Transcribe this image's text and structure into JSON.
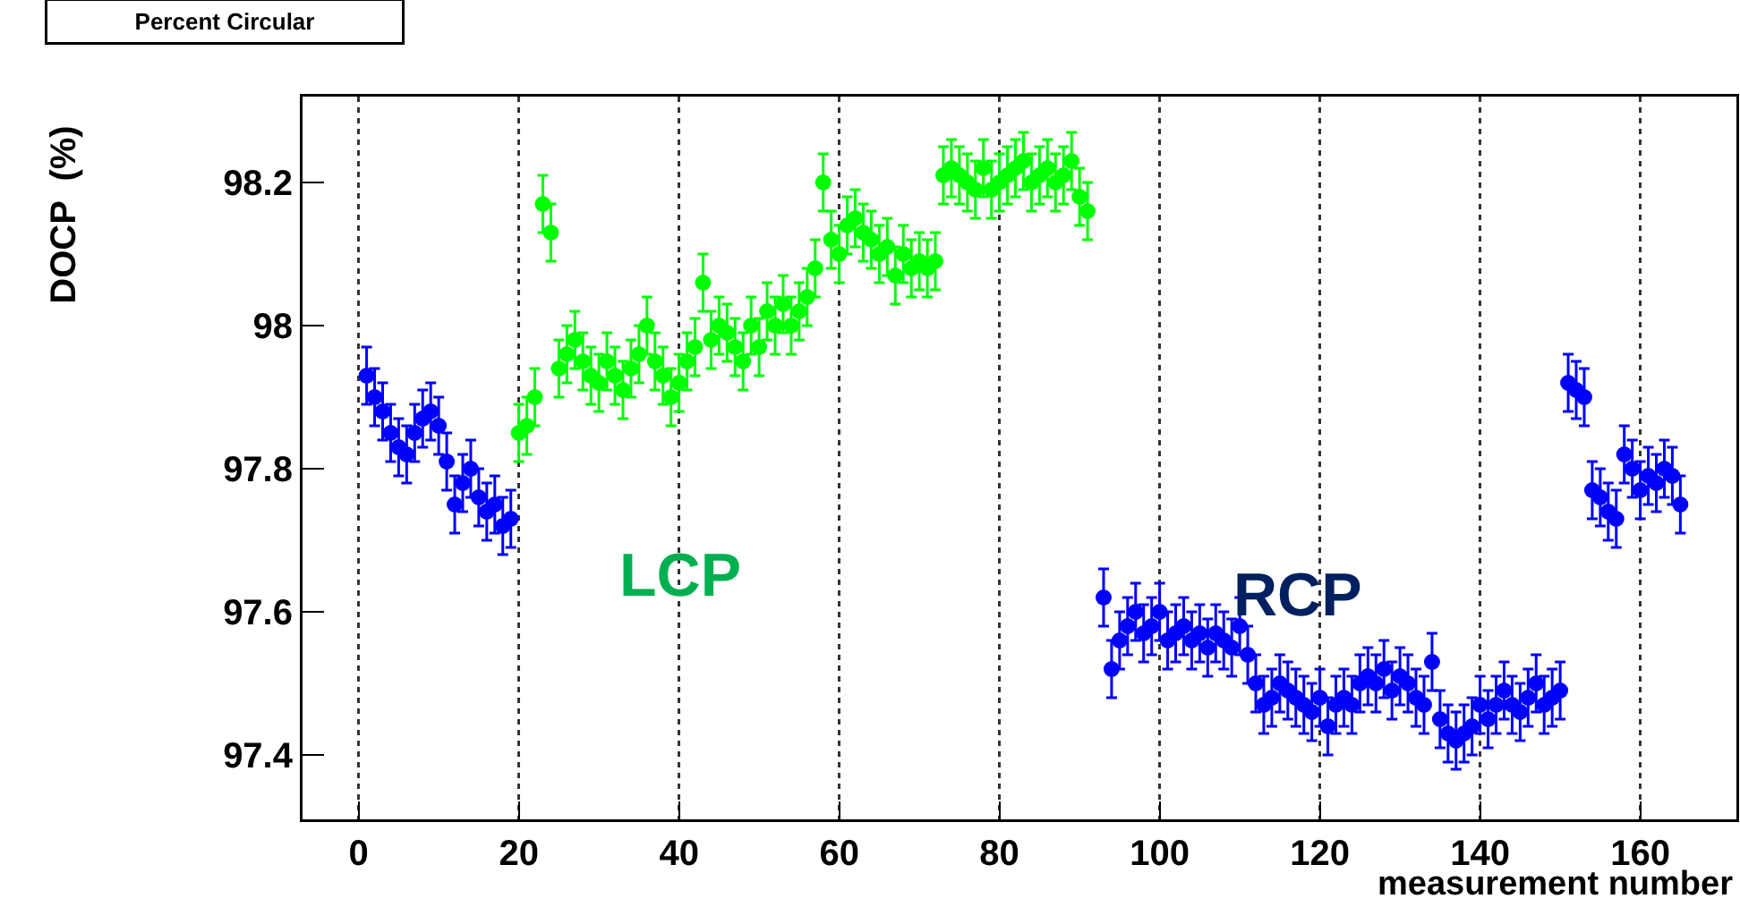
{
  "chart_data": {
    "type": "scatter",
    "title": "Percent Circular",
    "xlabel": "measurement number",
    "ylabel": "DOCP  (%)",
    "xlim": [
      -7,
      172
    ],
    "xticks": [
      0,
      20,
      40,
      60,
      80,
      100,
      120,
      140,
      160
    ],
    "ylim": [
      97.31,
      98.32
    ],
    "yticks": [
      97.4,
      97.6,
      97.8,
      98,
      98.2
    ],
    "grid": "x",
    "marker": "circle",
    "annotations": [
      "LCP",
      "RCP"
    ],
    "series": [
      {
        "color": "#00ff00",
        "x": [
          20,
          21,
          22,
          23,
          24,
          25,
          26,
          27,
          28,
          29,
          30,
          31,
          32,
          33,
          34,
          35,
          36,
          37,
          38,
          39,
          40,
          41,
          42,
          43,
          44,
          45,
          46,
          47,
          48,
          49,
          50,
          51,
          52,
          53,
          54,
          55,
          56,
          57,
          58,
          59,
          60,
          61,
          62,
          63,
          64,
          65,
          66,
          67,
          68,
          69,
          70,
          71,
          72,
          73,
          74,
          75,
          76,
          77,
          78,
          79,
          80,
          81,
          82,
          83,
          84,
          85,
          86,
          87,
          88,
          89,
          90,
          91
        ],
        "values": [
          97.85,
          97.86,
          97.9,
          98.17,
          98.13,
          97.94,
          97.96,
          97.98,
          97.95,
          97.93,
          97.92,
          97.95,
          97.93,
          97.91,
          97.94,
          97.96,
          98.0,
          97.95,
          97.93,
          97.9,
          97.92,
          97.95,
          97.97,
          98.06,
          97.98,
          98.0,
          97.99,
          97.97,
          97.95,
          98.0,
          97.97,
          98.02,
          98.0,
          98.03,
          98.0,
          98.02,
          98.04,
          98.08,
          98.2,
          98.12,
          98.1,
          98.14,
          98.15,
          98.13,
          98.12,
          98.1,
          98.11,
          98.07,
          98.1,
          98.08,
          98.09,
          98.08,
          98.09,
          98.21,
          98.22,
          98.21,
          98.2,
          98.19,
          98.22,
          98.19,
          98.2,
          98.21,
          98.22,
          98.23,
          98.2,
          98.21,
          98.22,
          98.2,
          98.21,
          98.23,
          98.18,
          98.16
        ],
        "errors": [
          0.04,
          0.04,
          0.04,
          0.04,
          0.04,
          0.04,
          0.04,
          0.04,
          0.04,
          0.04,
          0.04,
          0.04,
          0.04,
          0.04,
          0.04,
          0.04,
          0.04,
          0.04,
          0.04,
          0.04,
          0.04,
          0.04,
          0.04,
          0.04,
          0.04,
          0.04,
          0.04,
          0.04,
          0.04,
          0.04,
          0.04,
          0.04,
          0.04,
          0.04,
          0.04,
          0.04,
          0.04,
          0.04,
          0.04,
          0.04,
          0.04,
          0.04,
          0.04,
          0.04,
          0.04,
          0.04,
          0.04,
          0.04,
          0.04,
          0.04,
          0.04,
          0.04,
          0.04,
          0.04,
          0.04,
          0.04,
          0.04,
          0.04,
          0.04,
          0.04,
          0.04,
          0.04,
          0.04,
          0.04,
          0.04,
          0.04,
          0.04,
          0.04,
          0.04,
          0.04,
          0.04,
          0.04
        ]
      },
      {
        "color": "#0000ff",
        "x": [
          1,
          2,
          3,
          4,
          5,
          6,
          7,
          8,
          9,
          10,
          11,
          12,
          13,
          14,
          15,
          16,
          17,
          18,
          19,
          93,
          94,
          95,
          96,
          97,
          98,
          99,
          100,
          101,
          102,
          103,
          104,
          105,
          106,
          107,
          108,
          109,
          110,
          111,
          112,
          113,
          114,
          115,
          116,
          117,
          118,
          119,
          120,
          121,
          122,
          123,
          124,
          125,
          126,
          127,
          128,
          129,
          130,
          131,
          132,
          133,
          134,
          135,
          136,
          137,
          138,
          139,
          140,
          141,
          142,
          143,
          144,
          145,
          146,
          147,
          148,
          149,
          150,
          151,
          152,
          153,
          154,
          155,
          156,
          157,
          158,
          159,
          160,
          161,
          162,
          163,
          164,
          165
        ],
        "values": [
          97.93,
          97.9,
          97.88,
          97.85,
          97.83,
          97.82,
          97.85,
          97.87,
          97.88,
          97.86,
          97.81,
          97.75,
          97.78,
          97.8,
          97.76,
          97.74,
          97.75,
          97.72,
          97.73,
          97.62,
          97.52,
          97.56,
          97.58,
          97.6,
          97.57,
          97.58,
          97.6,
          97.56,
          97.57,
          97.58,
          97.56,
          97.57,
          97.55,
          97.57,
          97.56,
          97.55,
          97.58,
          97.54,
          97.5,
          97.47,
          97.48,
          97.5,
          97.49,
          97.48,
          97.47,
          97.46,
          97.48,
          97.44,
          97.47,
          97.48,
          97.47,
          97.5,
          97.51,
          97.5,
          97.52,
          97.49,
          97.51,
          97.5,
          97.48,
          97.47,
          97.53,
          97.45,
          97.43,
          97.42,
          97.43,
          97.44,
          97.47,
          97.45,
          97.47,
          97.49,
          97.47,
          97.46,
          97.48,
          97.5,
          97.47,
          97.48,
          97.49,
          97.92,
          97.91,
          97.9,
          97.77,
          97.76,
          97.74,
          97.73,
          97.82,
          97.8,
          97.77,
          97.79,
          97.78,
          97.8,
          97.79,
          97.75
        ],
        "errors": [
          0.04,
          0.04,
          0.04,
          0.04,
          0.04,
          0.04,
          0.04,
          0.04,
          0.04,
          0.04,
          0.04,
          0.04,
          0.04,
          0.04,
          0.04,
          0.04,
          0.04,
          0.04,
          0.04,
          0.04,
          0.04,
          0.04,
          0.04,
          0.04,
          0.04,
          0.04,
          0.04,
          0.04,
          0.04,
          0.04,
          0.04,
          0.04,
          0.04,
          0.04,
          0.04,
          0.04,
          0.04,
          0.04,
          0.04,
          0.04,
          0.04,
          0.04,
          0.04,
          0.04,
          0.04,
          0.04,
          0.04,
          0.04,
          0.04,
          0.04,
          0.04,
          0.04,
          0.04,
          0.04,
          0.04,
          0.04,
          0.04,
          0.04,
          0.04,
          0.04,
          0.04,
          0.04,
          0.04,
          0.04,
          0.04,
          0.04,
          0.04,
          0.04,
          0.04,
          0.04,
          0.04,
          0.04,
          0.04,
          0.04,
          0.04,
          0.04,
          0.04,
          0.04,
          0.04,
          0.04,
          0.04,
          0.04,
          0.04,
          0.04,
          0.04,
          0.04,
          0.04,
          0.04,
          0.04,
          0.04,
          0.04,
          0.04
        ]
      }
    ]
  }
}
